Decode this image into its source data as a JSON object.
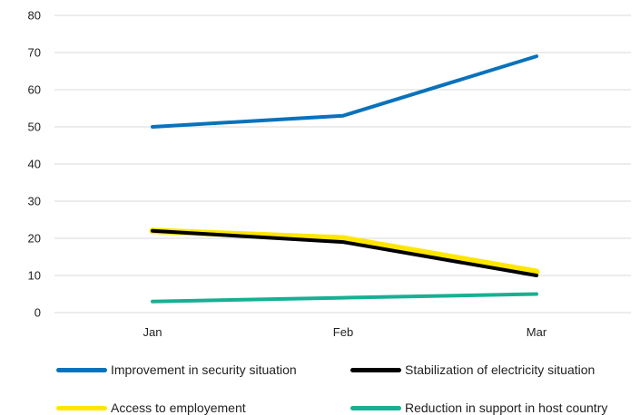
{
  "chart_data": {
    "type": "line",
    "categories": [
      "Jan",
      "Feb",
      "Mar"
    ],
    "ylim": [
      0,
      80
    ],
    "yticks": [
      0,
      10,
      20,
      30,
      40,
      50,
      60,
      70,
      80
    ],
    "grid": true,
    "legend_position": "bottom",
    "series": [
      {
        "name": "Improvement in security situation",
        "color": "#0a72ba",
        "values": [
          50,
          53,
          69
        ]
      },
      {
        "name": "Stabilization of electricity situation",
        "color": "#000000",
        "values": [
          22,
          19,
          10
        ]
      },
      {
        "name": "Access to employement",
        "color": "#ffe600",
        "values": [
          22,
          20,
          11
        ]
      },
      {
        "name": "Reduction in support in host country",
        "color": "#17b092",
        "values": [
          3,
          4,
          5
        ]
      }
    ]
  }
}
